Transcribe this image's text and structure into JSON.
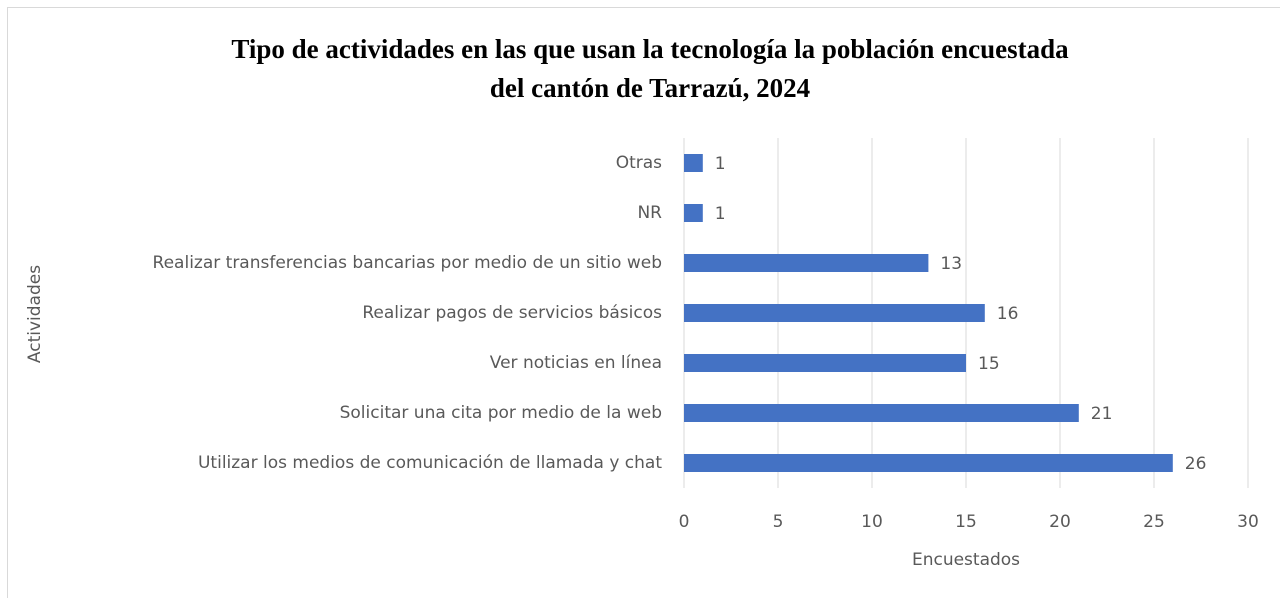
{
  "chart_data": {
    "type": "bar",
    "orientation": "horizontal",
    "title": [
      "Tipo de actividades en las que usan la tecnología la población encuestada",
      "del cantón de Tarrazú, 2024"
    ],
    "categories": [
      "Otras",
      "NR",
      "Realizar transferencias bancarias por medio de un sitio web",
      "Realizar pagos de servicios básicos",
      "Ver noticias en línea",
      "Solicitar una cita por medio de la web",
      "Utilizar los medios de comunicación de llamada y chat"
    ],
    "values": [
      1,
      1,
      13,
      16,
      15,
      21,
      26
    ],
    "color": "#4472c4",
    "xlim": [
      0,
      30
    ],
    "xticks": [
      0,
      5,
      10,
      15,
      20,
      25,
      30
    ],
    "xlabel": "Encuestados",
    "ylabel": "Actividades",
    "grid": true
  }
}
